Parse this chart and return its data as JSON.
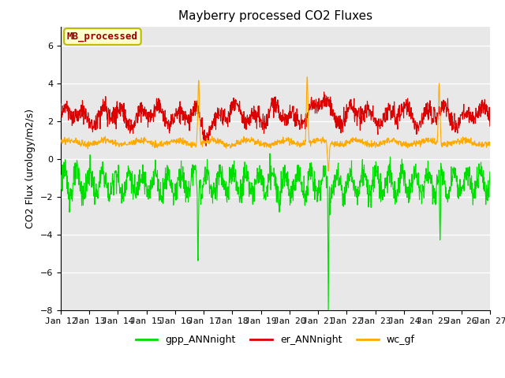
{
  "title": "Mayberry processed CO2 Fluxes",
  "ylabel": "CO2 Flux (urology/m2/s)",
  "ylim": [
    -8,
    7
  ],
  "yticks": [
    -8,
    -6,
    -4,
    -2,
    0,
    2,
    4,
    6
  ],
  "xtick_labels": [
    "Jan 12",
    "Jan 13",
    "Jan 14",
    "Jan 15",
    "Jan 16",
    "Jan 17",
    "Jan 18",
    "Jan 19",
    "Jan 20",
    "Jan 21",
    "Jan 22",
    "Jan 23",
    "Jan 24",
    "Jan 25",
    "Jan 26",
    "Jan 27"
  ],
  "n_points": 1500,
  "n_days": 15,
  "colors": {
    "gpp": "#00dd00",
    "er": "#dd0000",
    "wc": "#ffaa00",
    "background": "#e8e8e8",
    "grid": "#ffffff",
    "legend_bg": "#ffffcc",
    "legend_border": "#bbbb00",
    "legend_text": "#990000"
  },
  "legend_entries": [
    "gpp_ANNnight",
    "er_ANNnight",
    "wc_gf"
  ],
  "annotation_text": "MB_processed",
  "title_fontsize": 11,
  "label_fontsize": 9,
  "tick_fontsize": 8,
  "legend_fontsize": 9
}
